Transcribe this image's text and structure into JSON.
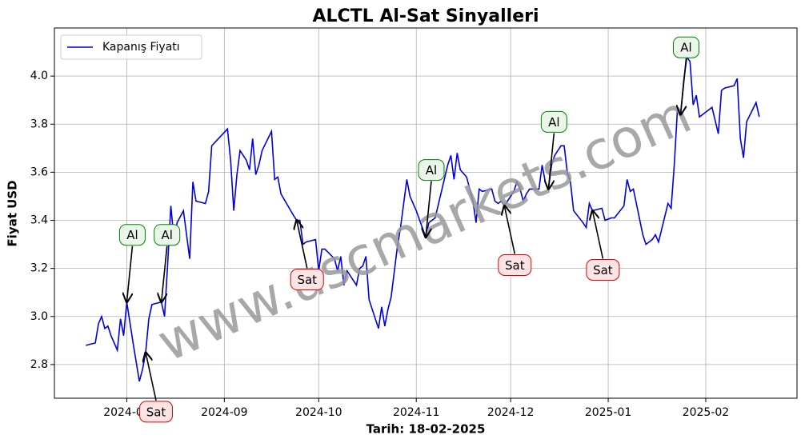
{
  "chart_data": {
    "type": "line",
    "title": "ALCTL Al-Sat Sinyalleri",
    "xlabel": "Tarih: 18-02-2025",
    "ylabel": "Fiyat USD",
    "watermark": "www.uscmarkets.com",
    "legend": "upper left",
    "grid": true,
    "xlim": [
      "2024-07-09",
      "2025-03-02"
    ],
    "xticks": [
      {
        "value": "2024-08-01",
        "label": "2024-08"
      },
      {
        "value": "2024-09-01",
        "label": "2024-09"
      },
      {
        "value": "2024-10-01",
        "label": "2024-10"
      },
      {
        "value": "2024-11-01",
        "label": "2024-11"
      },
      {
        "value": "2024-12-01",
        "label": "2024-12"
      },
      {
        "value": "2025-01-01",
        "label": "2025-01"
      },
      {
        "value": "2025-02-01",
        "label": "2025-02"
      }
    ],
    "ylim": [
      2.66,
      4.2
    ],
    "yticks": [
      2.8,
      {
        "value": 3.0,
        "label": "3.0"
      },
      3.2,
      3.4,
      3.6,
      3.8,
      {
        "value": 4.0,
        "label": "4.0"
      }
    ],
    "x": [
      "2024-07-19",
      "2024-07-22",
      "2024-07-23",
      "2024-07-24",
      "2024-07-25",
      "2024-07-26",
      "2024-07-27",
      "2024-07-29",
      "2024-07-30",
      "2024-07-31",
      "2024-08-01",
      "2024-08-03",
      "2024-08-05",
      "2024-08-06",
      "2024-08-07",
      "2024-08-08",
      "2024-08-09",
      "2024-08-12",
      "2024-08-13",
      "2024-08-14",
      "2024-08-15",
      "2024-08-16",
      "2024-08-17",
      "2024-08-19",
      "2024-08-20",
      "2024-08-21",
      "2024-08-22",
      "2024-08-23",
      "2024-08-26",
      "2024-08-27",
      "2024-08-28",
      "2024-09-02",
      "2024-09-03",
      "2024-09-04",
      "2024-09-05",
      "2024-09-06",
      "2024-09-08",
      "2024-09-09",
      "2024-09-10",
      "2024-09-11",
      "2024-09-12",
      "2024-09-13",
      "2024-09-16",
      "2024-09-17",
      "2024-09-18",
      "2024-09-19",
      "2024-09-23",
      "2024-09-24",
      "2024-09-25",
      "2024-09-26",
      "2024-09-27",
      "2024-09-30",
      "2024-10-01",
      "2024-10-02",
      "2024-10-03",
      "2024-10-06",
      "2024-10-07",
      "2024-10-08",
      "2024-10-09",
      "2024-10-10",
      "2024-10-13",
      "2024-10-14",
      "2024-10-15",
      "2024-10-16",
      "2024-10-17",
      "2024-10-20",
      "2024-10-21",
      "2024-10-22",
      "2024-10-23",
      "2024-10-24",
      "2024-10-26",
      "2024-10-27",
      "2024-10-29",
      "2024-10-30",
      "2024-11-01",
      "2024-11-04",
      "2024-11-05",
      "2024-11-07",
      "2024-11-09",
      "2024-11-11",
      "2024-11-12",
      "2024-11-13",
      "2024-11-14",
      "2024-11-15",
      "2024-11-17",
      "2024-11-19",
      "2024-11-20",
      "2024-11-21",
      "2024-11-22",
      "2024-11-25",
      "2024-11-26",
      "2024-11-27",
      "2024-11-28",
      "2024-11-29",
      "2024-12-02",
      "2024-12-03",
      "2024-12-04",
      "2024-12-05",
      "2024-12-06",
      "2024-12-07",
      "2024-12-10",
      "2024-12-11",
      "2024-12-12",
      "2024-12-13",
      "2024-12-14",
      "2024-12-15",
      "2024-12-17",
      "2024-12-18",
      "2024-12-19",
      "2024-12-20",
      "2024-12-21",
      "2024-12-24",
      "2024-12-25",
      "2024-12-26",
      "2024-12-27",
      "2024-12-30",
      "2024-12-31",
      "2025-01-02",
      "2025-01-03",
      "2025-01-06",
      "2025-01-07",
      "2025-01-08",
      "2025-01-09",
      "2025-01-12",
      "2025-01-13",
      "2025-01-14",
      "2025-01-15",
      "2025-01-16",
      "2025-01-17",
      "2025-01-20",
      "2025-01-21",
      "2025-01-22",
      "2025-01-23",
      "2025-01-24",
      "2025-01-25",
      "2025-01-26",
      "2025-01-27",
      "2025-01-28",
      "2025-01-29",
      "2025-01-30",
      "2025-01-31",
      "2025-02-03",
      "2025-02-05",
      "2025-02-06",
      "2025-02-07",
      "2025-02-10",
      "2025-02-11",
      "2025-02-12",
      "2025-02-13",
      "2025-02-14",
      "2025-02-17",
      "2025-02-18"
    ],
    "series": [
      {
        "name": "Kapanış Fiyatı",
        "color": "#0000e0",
        "values": [
          2.88,
          2.89,
          2.97,
          3.0,
          2.95,
          2.96,
          2.92,
          2.86,
          2.99,
          2.92,
          3.06,
          2.89,
          2.73,
          2.78,
          2.85,
          2.99,
          3.05,
          3.06,
          3.0,
          3.22,
          3.46,
          3.32,
          3.39,
          3.44,
          3.34,
          3.24,
          3.56,
          3.48,
          3.47,
          3.52,
          3.71,
          3.78,
          3.65,
          3.44,
          3.59,
          3.69,
          3.65,
          3.61,
          3.74,
          3.59,
          3.63,
          3.69,
          3.77,
          3.57,
          3.58,
          3.51,
          3.42,
          3.4,
          3.4,
          3.3,
          3.31,
          3.32,
          3.19,
          3.28,
          3.28,
          3.24,
          3.19,
          3.25,
          3.13,
          3.19,
          3.13,
          3.2,
          3.21,
          3.25,
          3.07,
          2.95,
          3.04,
          2.96,
          3.03,
          3.08,
          3.29,
          3.37,
          3.57,
          3.5,
          3.44,
          3.33,
          3.39,
          3.41,
          3.52,
          3.63,
          3.67,
          3.57,
          3.68,
          3.61,
          3.58,
          3.48,
          3.39,
          3.53,
          3.52,
          3.53,
          3.48,
          3.47,
          3.48,
          3.46,
          3.52,
          3.56,
          3.53,
          3.48,
          3.51,
          3.53,
          3.53,
          3.63,
          3.56,
          3.53,
          3.63,
          3.67,
          3.71,
          3.71,
          3.6,
          3.56,
          3.44,
          3.39,
          3.37,
          3.47,
          3.44,
          3.45,
          3.4,
          3.41,
          3.41,
          3.46,
          3.57,
          3.52,
          3.53,
          3.34,
          3.3,
          3.31,
          3.32,
          3.34,
          3.31,
          3.47,
          3.45,
          3.63,
          3.86,
          3.84,
          3.98,
          4.08,
          4.06,
          3.88,
          3.92,
          3.83,
          3.84,
          3.87,
          3.76,
          3.94,
          3.95,
          3.96,
          3.99,
          3.74,
          3.66,
          3.81,
          3.89,
          3.83
        ]
      }
    ],
    "annotations": [
      {
        "text": "Al",
        "x": "2024-08-01",
        "y": 3.06,
        "color": "green"
      },
      {
        "text": "Al",
        "x": "2024-08-12",
        "y": 3.06,
        "color": "green"
      },
      {
        "text": "Al",
        "x": "2024-11-04",
        "y": 3.33,
        "color": "green"
      },
      {
        "text": "Al",
        "x": "2024-12-13",
        "y": 3.53,
        "color": "green"
      },
      {
        "text": "Al",
        "x": "2025-01-24",
        "y": 3.84,
        "color": "green"
      },
      {
        "text": "Sat",
        "x": "2024-08-07",
        "y": 2.85,
        "color": "red"
      },
      {
        "text": "Sat",
        "x": "2024-09-24",
        "y": 3.4,
        "color": "red"
      },
      {
        "text": "Sat",
        "x": "2024-11-29",
        "y": 3.46,
        "color": "red"
      },
      {
        "text": "Sat",
        "x": "2024-12-27",
        "y": 3.44,
        "color": "red"
      }
    ]
  }
}
